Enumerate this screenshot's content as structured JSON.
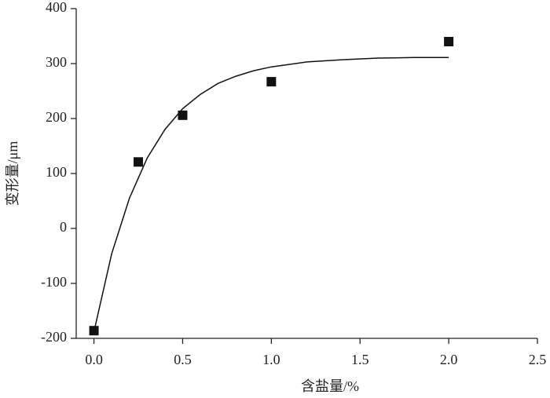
{
  "chart_data": {
    "type": "scatter",
    "x_label": "含盐量/%",
    "y_label": "变形量/μm",
    "xlim": [
      -0.1,
      2.5
    ],
    "ylim": [
      -200,
      400
    ],
    "xticks": [
      {
        "value": 0,
        "label": "0.0"
      },
      0.5,
      {
        "value": 1,
        "label": "1.0"
      },
      1.5,
      {
        "value": 2,
        "label": "2.0"
      },
      2.5
    ],
    "yticks": [
      -200,
      -100,
      0,
      100,
      200,
      300,
      400
    ],
    "series": [
      {
        "marker": "square",
        "color": "#111111",
        "x": [
          0,
          0.25,
          0.5,
          1,
          2
        ],
        "values": [
          -186,
          121,
          206,
          267,
          340
        ]
      },
      {
        "marker": "line",
        "color": "#111111",
        "x": [
          0,
          0.1,
          0.2,
          0.3,
          0.4,
          0.5,
          0.6,
          0.7,
          0.8,
          0.9,
          1,
          1.2,
          1.4,
          1.6,
          1.8,
          2
        ],
        "values": [
          -188,
          -46,
          55,
          128,
          180,
          218,
          244,
          264,
          277,
          287,
          294,
          303,
          307,
          310,
          311,
          311
        ]
      }
    ]
  }
}
